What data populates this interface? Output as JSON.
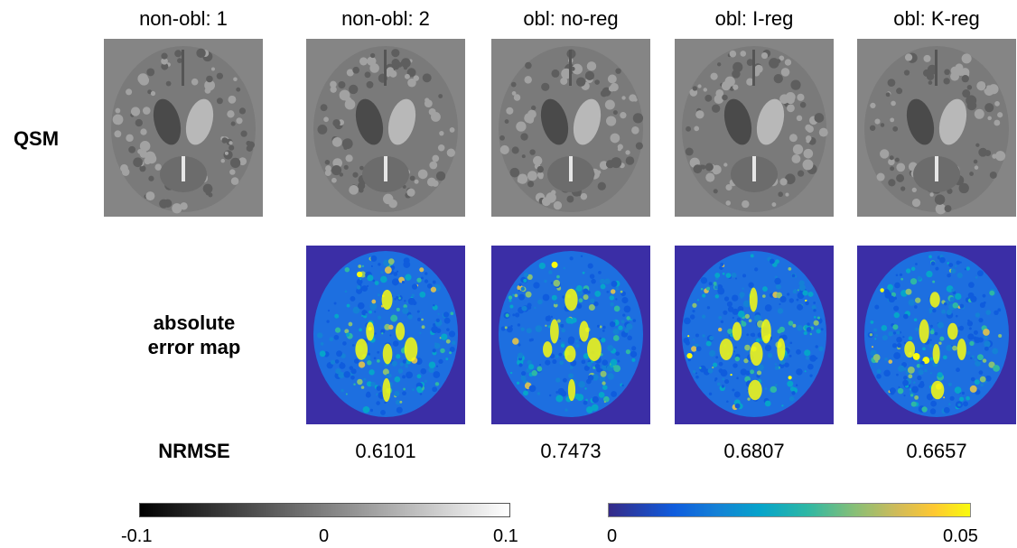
{
  "columns": [
    {
      "title": "non-obl: 1",
      "nrmse": ""
    },
    {
      "title": "non-obl: 2",
      "nrmse": "0.6101"
    },
    {
      "title": "obl: no-reg",
      "nrmse": "0.7473"
    },
    {
      "title": "obl: I-reg",
      "nrmse": "0.6807"
    },
    {
      "title": "obl: K-reg",
      "nrmse": "0.6657"
    }
  ],
  "row_labels": {
    "qsm": "QSM",
    "error_line1": "absolute",
    "error_line2": "error map",
    "nrmse": "NRMSE"
  },
  "colorbars": {
    "gray": {
      "min": "-0.1",
      "mid": "0",
      "max": "0.1",
      "colormap": "gray"
    },
    "parula": {
      "min": "0",
      "max": "0.05",
      "colormap": "parula"
    }
  },
  "colors": {
    "qsm_background": "#858585",
    "error_background": "#3b2ea6",
    "error_high": "#f9fb0e"
  }
}
